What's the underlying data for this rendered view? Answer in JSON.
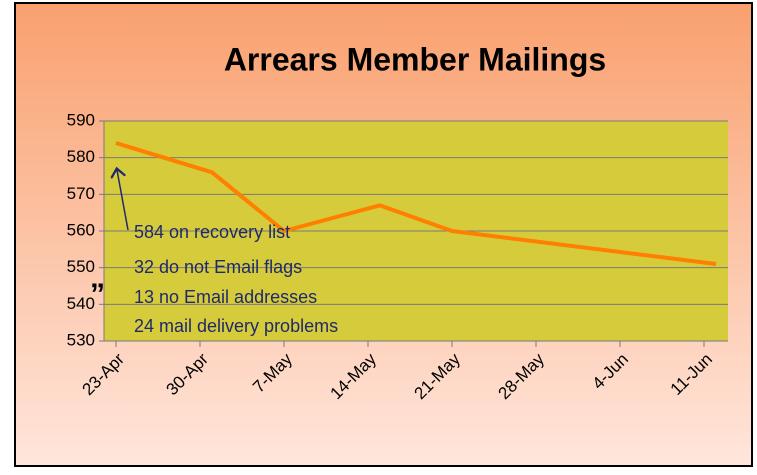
{
  "chart_data": {
    "type": "line",
    "title": "Arrears Member Mailings",
    "x": [
      "23-Apr",
      "1-May",
      "7-May",
      "15-May",
      "21-May",
      "12-Jun"
    ],
    "series": [
      {
        "name": "Mailings",
        "color": "#ff7f00",
        "values": [
          584,
          576,
          560,
          567,
          560,
          551
        ]
      }
    ],
    "xlim": [
      "22-Apr",
      "13-Jun"
    ],
    "xticks": [
      "23-Apr",
      "30-Apr",
      "7-May",
      "14-May",
      "21-May",
      "28-May",
      "4-Jun",
      "11-Jun"
    ],
    "ylim": [
      530,
      590
    ],
    "yticks": [
      530,
      540,
      550,
      560,
      570,
      580,
      590
    ],
    "grid": true,
    "annotations": [
      "584 on recovery list",
      "32 do not Email flags",
      "13 no Email addresses",
      "24 mail delivery problems",
      "”"
    ]
  }
}
